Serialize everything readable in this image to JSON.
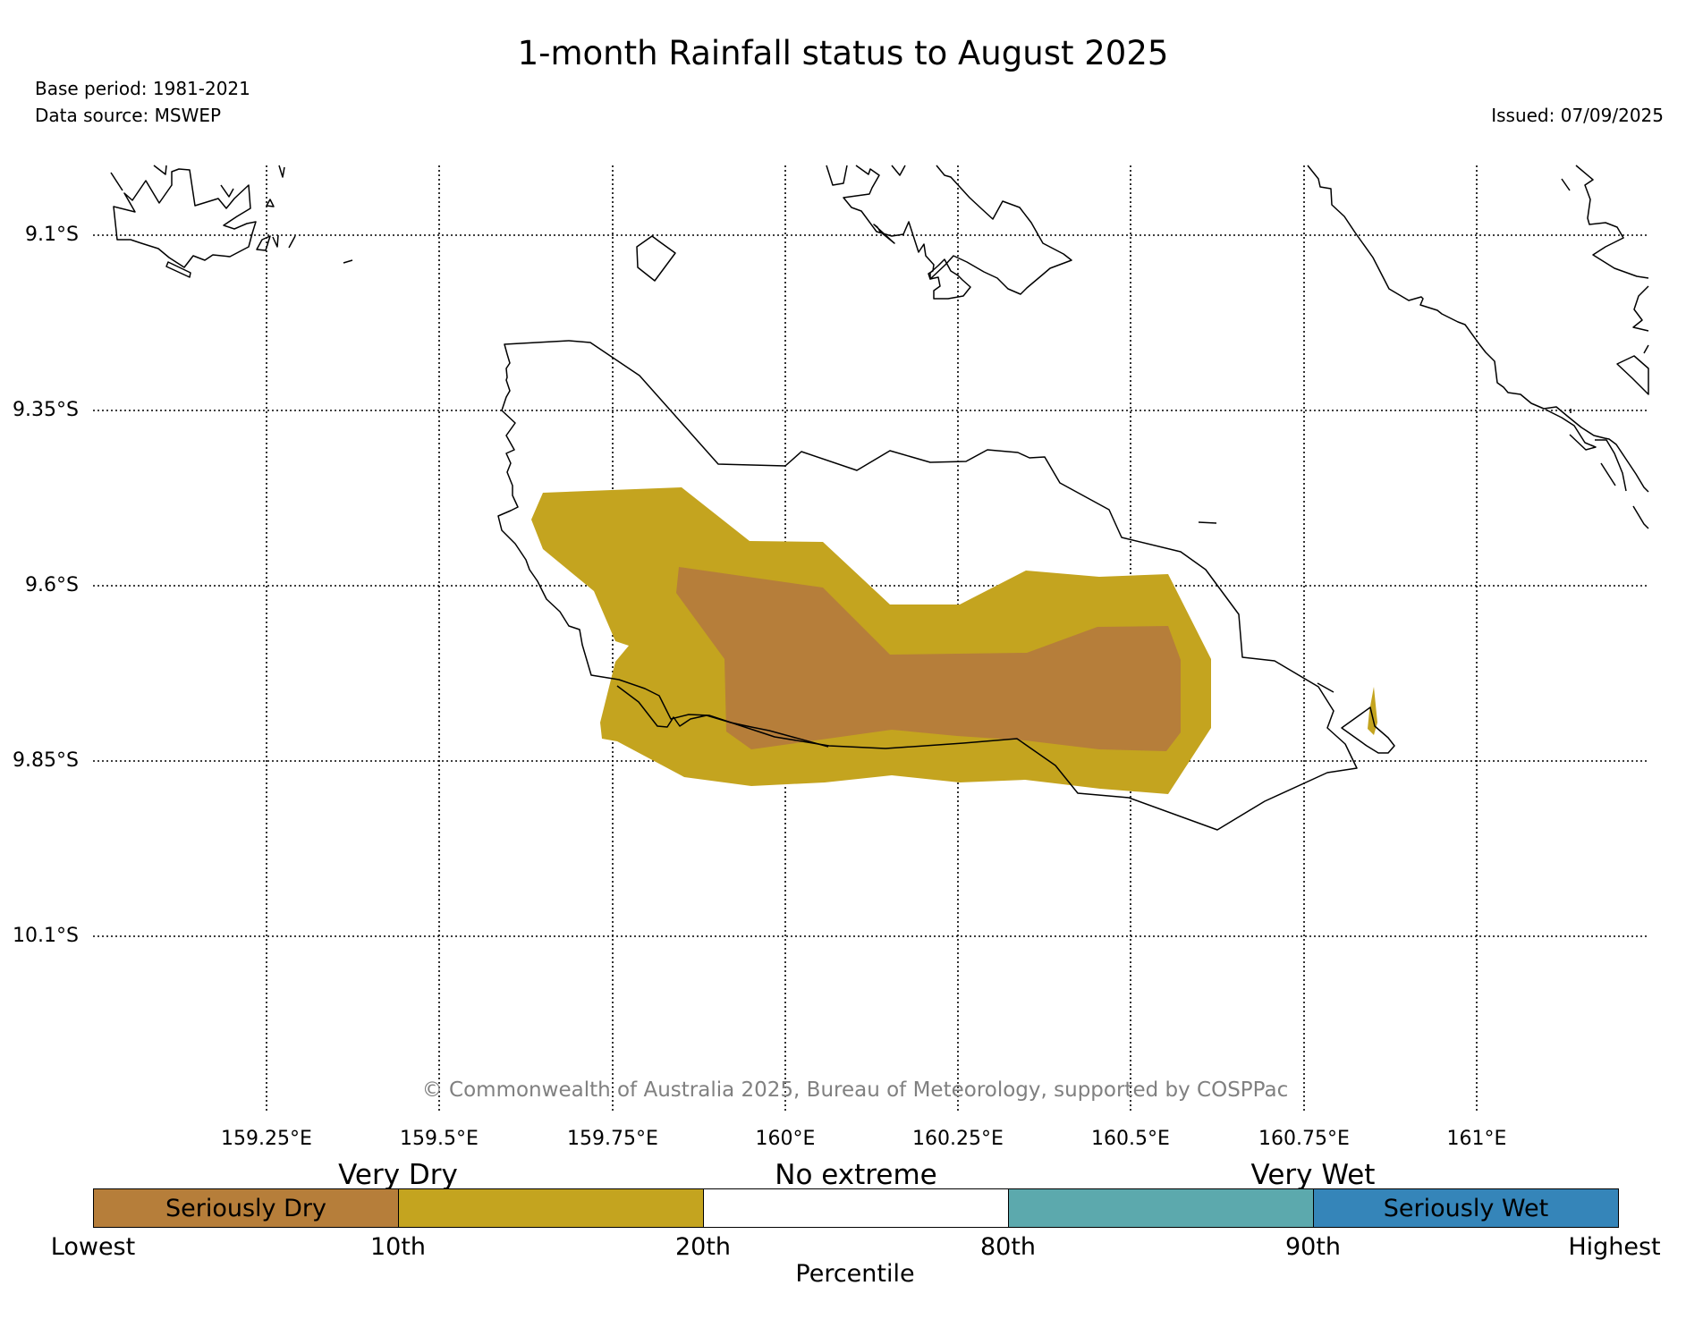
{
  "title": "1-month Rainfall status to August 2025",
  "base_period": "Base period: 1981-2021",
  "data_source": "Data source: MSWEP",
  "issued": "Issued: 07/09/2025",
  "copyright": "© Commonwealth of Australia 2025, Bureau of Meteorology, supported by COSPPac",
  "latitudes": [
    "9.1°S",
    "9.35°S",
    "9.6°S",
    "9.85°S",
    "10.1°S"
  ],
  "longitudes": [
    "159.25°E",
    "159.5°E",
    "159.75°E",
    "160°E",
    "160.25°E",
    "160.5°E",
    "160.75°E",
    "161°E"
  ],
  "categories": {
    "dry": "Very Dry",
    "normal": "No extreme",
    "wet": "Very Wet"
  },
  "legend": {
    "segments": [
      {
        "label": "Seriously Dry",
        "color": "#b67e3a"
      },
      {
        "label": "",
        "color": "#c4a41f"
      },
      {
        "label": "",
        "color": "#ffffff"
      },
      {
        "label": "",
        "color": "#5ca9ad"
      },
      {
        "label": "Seriously Wet",
        "color": "#3585b9"
      }
    ],
    "ticks": [
      "Lowest",
      "10th",
      "20th",
      "80th",
      "90th",
      "Highest"
    ],
    "axis_label": "Percentile"
  },
  "colors": {
    "seriously_dry": "#b67e3a",
    "very_dry": "#c4a41f",
    "very_wet": "#5ca9ad",
    "seriously_wet": "#3585b9"
  }
}
